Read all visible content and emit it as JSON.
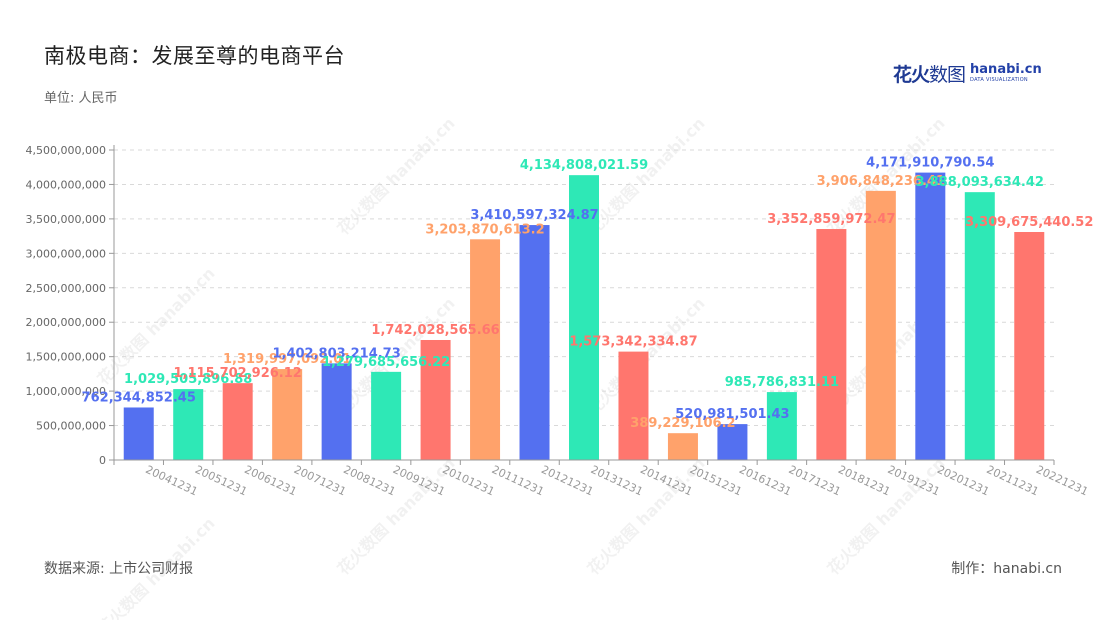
{
  "header": {
    "title": "南极电商：发展至尊的电商平台",
    "unit": "单位: 人民币"
  },
  "logo": {
    "cn_bold": "花火",
    "cn_light": "数图",
    "brand": "hanabi.cn",
    "sub": "DATA VISUALIZATION"
  },
  "footer": {
    "source": "数据来源: 上市公司财报",
    "credit": "制作：hanabi.cn"
  },
  "watermark": {
    "text": "花火数图 hanabi.cn"
  },
  "chart_data": {
    "type": "bar",
    "title": "南极电商：发展至尊的电商平台",
    "ylabel": "单位: 人民币",
    "xlabel": "",
    "ylim": [
      0,
      4500000000
    ],
    "ytick_step": 500000000,
    "grid": true,
    "categories": [
      "20041231",
      "20051231",
      "20061231",
      "20071231",
      "20081231",
      "20091231",
      "20101231",
      "20111231",
      "20121231",
      "20131231",
      "20141231",
      "20151231",
      "20161231",
      "20171231",
      "20181231",
      "20191231",
      "20201231",
      "20211231",
      "20221231"
    ],
    "values": [
      762344852.45,
      1029505896.88,
      1115702926.12,
      1319997092.01,
      1402803214.73,
      1279685656.22,
      1742028565.66,
      3203870613.2,
      3410597324.87,
      4134808021.59,
      1573342334.87,
      389229106.2,
      520981501.43,
      985786831.11,
      3352859972.47,
      3906848236.41,
      4171910790.54,
      3888093634.42,
      3309675440.52
    ],
    "labels": [
      "762,344,852.45",
      "1,029,505,896.88",
      "1,115,702,926.12",
      "1,319,997,092.01",
      "1,402,803,214.73",
      "1,279,685,656.22",
      "1,742,028,565.66",
      "3,203,870,613.2",
      "3,410,597,324.87",
      "4,134,808,021.59",
      "1,573,342,334.87",
      "389,229,106.2",
      "520,981,501.43",
      "985,786,831.11",
      "3,352,859,972.47",
      "3,906,848,236.41",
      "4,171,910,790.54",
      "3,888,093,634.42",
      "3,309,675,440.52"
    ],
    "colors": [
      "#5470f0",
      "#2ee8b6",
      "#ff766e",
      "#ffa26b",
      "#5470f0",
      "#2ee8b6",
      "#ff766e",
      "#ffa26b",
      "#5470f0",
      "#2ee8b6",
      "#ff766e",
      "#ffa26b",
      "#5470f0",
      "#2ee8b6",
      "#ff766e",
      "#ffa26b",
      "#5470f0",
      "#2ee8b6",
      "#ff766e"
    ],
    "ytick_labels": [
      "0",
      "500,000,000",
      "1,000,000,000",
      "1,500,000,000",
      "2,000,000,000",
      "2,500,000,000",
      "3,000,000,000",
      "3,500,000,000",
      "4,000,000,000",
      "4,500,000,000"
    ]
  }
}
